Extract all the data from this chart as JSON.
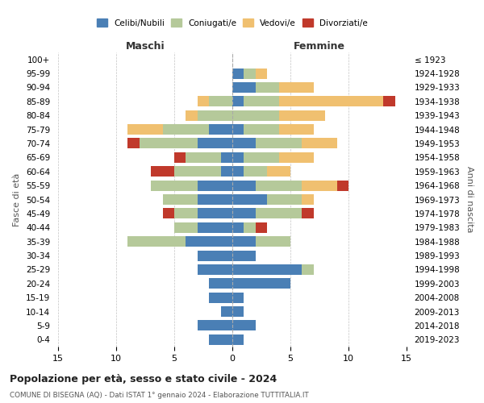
{
  "age_groups": [
    "100+",
    "95-99",
    "90-94",
    "85-89",
    "80-84",
    "75-79",
    "70-74",
    "65-69",
    "60-64",
    "55-59",
    "50-54",
    "45-49",
    "40-44",
    "35-39",
    "30-34",
    "25-29",
    "20-24",
    "15-19",
    "10-14",
    "5-9",
    "0-4"
  ],
  "birth_years": [
    "≤ 1923",
    "1924-1928",
    "1929-1933",
    "1934-1938",
    "1939-1943",
    "1944-1948",
    "1949-1953",
    "1954-1958",
    "1959-1963",
    "1964-1968",
    "1969-1973",
    "1974-1978",
    "1979-1983",
    "1984-1988",
    "1989-1993",
    "1994-1998",
    "1999-2003",
    "2004-2008",
    "2009-2013",
    "2014-2018",
    "2019-2023"
  ],
  "colors": {
    "celibi": "#4a7fb5",
    "coniugati": "#b5c99a",
    "vedovi": "#f0c070",
    "divorziati": "#c0392b"
  },
  "maschi": {
    "celibi": [
      0,
      0,
      0,
      0,
      0,
      2,
      3,
      1,
      1,
      3,
      3,
      3,
      3,
      4,
      3,
      3,
      2,
      2,
      1,
      3,
      2
    ],
    "coniugati": [
      0,
      0,
      0,
      2,
      3,
      4,
      5,
      3,
      4,
      4,
      3,
      2,
      2,
      5,
      0,
      0,
      0,
      0,
      0,
      0,
      0
    ],
    "vedovi": [
      0,
      0,
      0,
      1,
      1,
      3,
      0,
      0,
      0,
      0,
      0,
      0,
      0,
      0,
      0,
      0,
      0,
      0,
      0,
      0,
      0
    ],
    "divorziati": [
      0,
      0,
      0,
      0,
      0,
      0,
      1,
      1,
      2,
      0,
      0,
      1,
      0,
      0,
      0,
      0,
      0,
      0,
      0,
      0,
      0
    ]
  },
  "femmine": {
    "celibi": [
      0,
      1,
      2,
      1,
      0,
      1,
      2,
      1,
      1,
      2,
      3,
      2,
      1,
      2,
      2,
      6,
      5,
      1,
      1,
      2,
      1
    ],
    "coniugati": [
      0,
      1,
      2,
      3,
      4,
      3,
      4,
      3,
      2,
      4,
      3,
      4,
      1,
      3,
      0,
      1,
      0,
      0,
      0,
      0,
      0
    ],
    "vedovi": [
      0,
      1,
      3,
      9,
      4,
      3,
      3,
      3,
      2,
      3,
      1,
      0,
      0,
      0,
      0,
      0,
      0,
      0,
      0,
      0,
      0
    ],
    "divorziati": [
      0,
      0,
      0,
      1,
      0,
      0,
      0,
      0,
      0,
      1,
      0,
      1,
      1,
      0,
      0,
      0,
      0,
      0,
      0,
      0,
      0
    ]
  },
  "xlim": 15,
  "title": "Popolazione per età, sesso e stato civile - 2024",
  "subtitle": "COMUNE DI BISEGNA (AQ) - Dati ISTAT 1° gennaio 2024 - Elaborazione TUTTITALIA.IT",
  "ylabel_left": "Fasce di età",
  "ylabel_right": "Anni di nascita",
  "xlabel_left": "Maschi",
  "xlabel_right": "Femmine",
  "legend_labels": [
    "Celibi/Nubili",
    "Coniugati/e",
    "Vedovi/e",
    "Divorziati/e"
  ],
  "background_color": "#ffffff"
}
